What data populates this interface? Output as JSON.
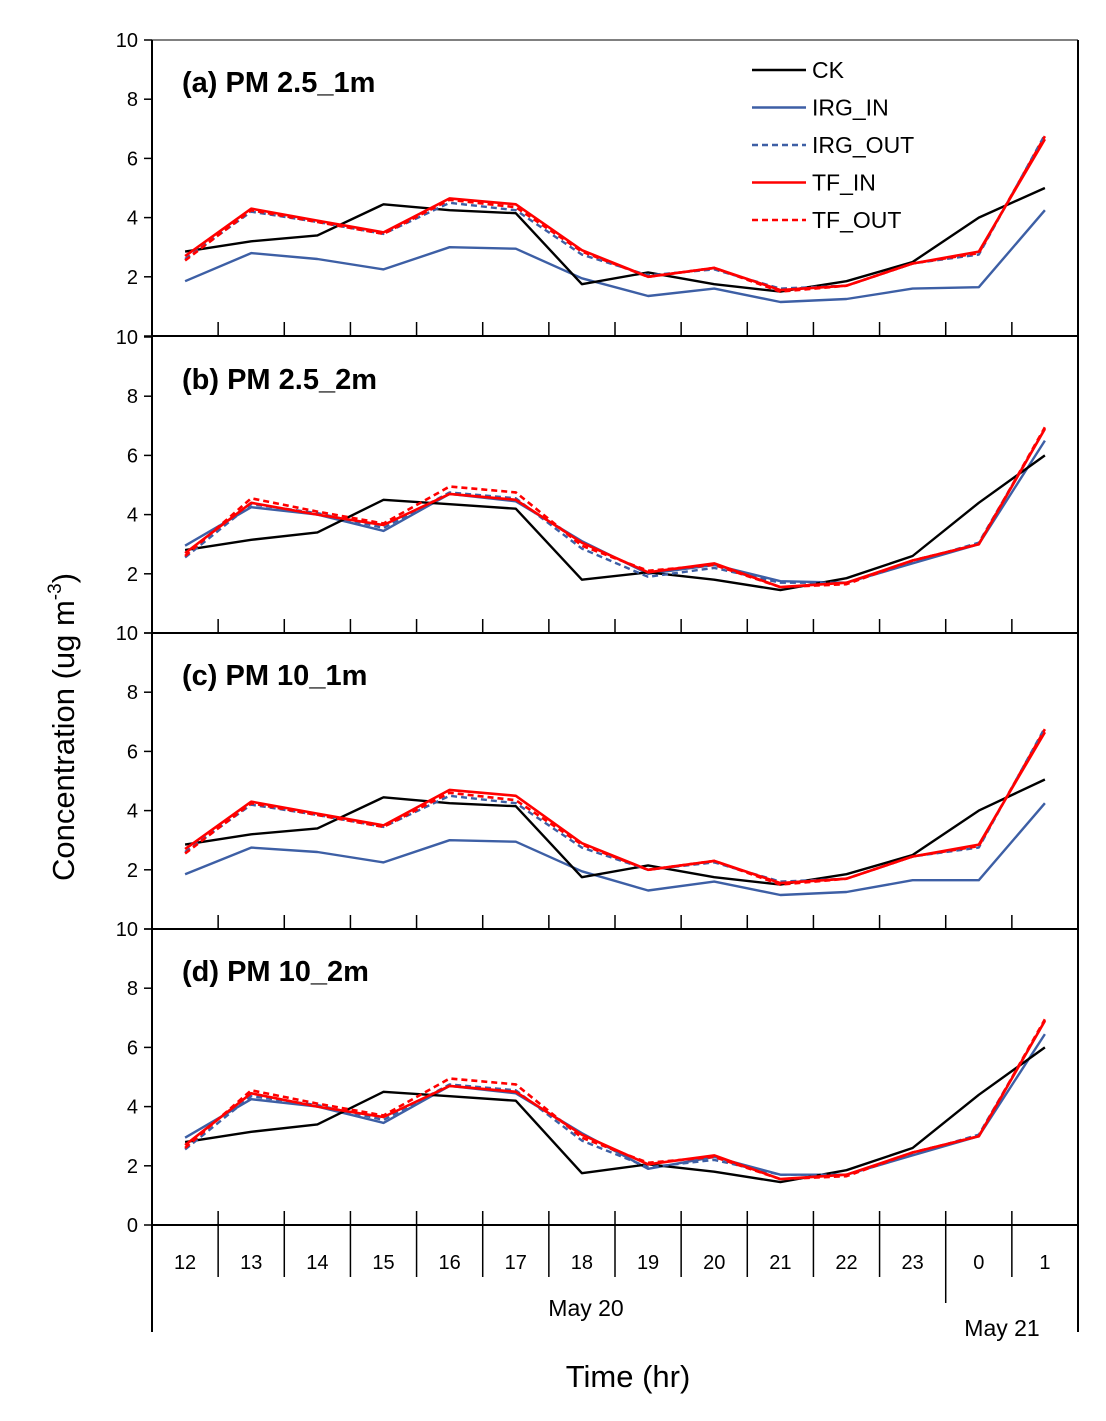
{
  "chart_data": {
    "type": "line",
    "ylabel": "Concentration (ug m",
    "ylabel_superscript": "-3",
    "ylabel_close": ")",
    "xlabel": "Time (hr)",
    "ylim": [
      0,
      10
    ],
    "yticks": [
      0,
      2,
      4,
      6,
      8,
      10
    ],
    "categories": [
      "12",
      "13",
      "14",
      "15",
      "16",
      "17",
      "18",
      "19",
      "20",
      "21",
      "22",
      "23",
      "0",
      "1"
    ],
    "date_labels": [
      "May 20",
      "May 21"
    ],
    "legend": [
      {
        "name": "CK",
        "color": "#000000",
        "dashed": false
      },
      {
        "name": "IRG_IN",
        "color": "#3d5fa5",
        "dashed": false
      },
      {
        "name": "IRG_OUT",
        "color": "#3d5fa5",
        "dashed": true
      },
      {
        "name": "TF_IN",
        "color": "#ff0000",
        "dashed": false
      },
      {
        "name": "TF_OUT",
        "color": "#ff0000",
        "dashed": true
      }
    ],
    "panels": [
      {
        "title": "(a) PM 2.5_1m",
        "series": [
          {
            "name": "CK",
            "values": [
              2.85,
              3.2,
              3.4,
              4.45,
              4.25,
              4.15,
              1.75,
              2.15,
              1.75,
              1.5,
              1.85,
              2.5,
              4.0,
              5.0
            ]
          },
          {
            "name": "IRG_IN",
            "values": [
              1.85,
              2.8,
              2.6,
              2.25,
              3.0,
              2.95,
              1.95,
              1.35,
              1.6,
              1.15,
              1.25,
              1.6,
              1.65,
              4.25
            ]
          },
          {
            "name": "IRG_OUT",
            "values": [
              2.6,
              4.2,
              3.85,
              3.45,
              4.5,
              4.25,
              2.75,
              2.05,
              2.25,
              1.6,
              1.7,
              2.45,
              2.75,
              6.8
            ]
          },
          {
            "name": "TF_IN",
            "values": [
              2.7,
              4.3,
              3.9,
              3.5,
              4.65,
              4.45,
              2.9,
              2.0,
              2.3,
              1.55,
              1.7,
              2.45,
              2.85,
              6.65
            ]
          },
          {
            "name": "TF_OUT",
            "values": [
              2.55,
              4.25,
              3.85,
              3.45,
              4.6,
              4.35,
              2.85,
              2.0,
              2.3,
              1.5,
              1.7,
              2.45,
              2.8,
              6.75
            ]
          }
        ]
      },
      {
        "title": "(b) PM 2.5_2m",
        "series": [
          {
            "name": "CK",
            "values": [
              2.8,
              3.15,
              3.4,
              4.5,
              4.35,
              4.2,
              1.8,
              2.05,
              1.8,
              1.45,
              1.85,
              2.6,
              4.4,
              6.0
            ]
          },
          {
            "name": "IRG_IN",
            "values": [
              2.95,
              4.25,
              4.0,
              3.45,
              4.7,
              4.45,
              3.1,
              2.0,
              2.3,
              1.75,
              1.7,
              2.35,
              3.0,
              6.5
            ]
          },
          {
            "name": "IRG_OUT",
            "values": [
              2.55,
              4.35,
              4.05,
              3.55,
              4.75,
              4.55,
              2.85,
              1.9,
              2.2,
              1.7,
              1.7,
              2.4,
              3.05,
              6.9
            ]
          },
          {
            "name": "TF_IN",
            "values": [
              2.7,
              4.4,
              4.0,
              3.65,
              4.7,
              4.5,
              3.05,
              2.05,
              2.35,
              1.55,
              1.7,
              2.45,
              3.0,
              6.9
            ]
          },
          {
            "name": "TF_OUT",
            "values": [
              2.6,
              4.55,
              4.1,
              3.7,
              4.95,
              4.75,
              2.95,
              2.1,
              2.3,
              1.55,
              1.65,
              2.45,
              3.0,
              6.95
            ]
          }
        ]
      },
      {
        "title": "(c) PM 10_1m",
        "series": [
          {
            "name": "CK",
            "values": [
              2.85,
              3.2,
              3.4,
              4.45,
              4.25,
              4.15,
              1.75,
              2.15,
              1.75,
              1.5,
              1.85,
              2.5,
              4.0,
              5.05
            ]
          },
          {
            "name": "IRG_IN",
            "values": [
              1.85,
              2.75,
              2.6,
              2.25,
              3.0,
              2.95,
              1.95,
              1.3,
              1.6,
              1.15,
              1.25,
              1.65,
              1.65,
              4.25
            ]
          },
          {
            "name": "IRG_OUT",
            "values": [
              2.6,
              4.2,
              3.85,
              3.45,
              4.5,
              4.25,
              2.75,
              2.0,
              2.25,
              1.6,
              1.7,
              2.45,
              2.75,
              6.8
            ]
          },
          {
            "name": "TF_IN",
            "values": [
              2.7,
              4.3,
              3.9,
              3.5,
              4.7,
              4.5,
              2.9,
              2.0,
              2.3,
              1.55,
              1.7,
              2.45,
              2.85,
              6.65
            ]
          },
          {
            "name": "TF_OUT",
            "values": [
              2.55,
              4.25,
              3.85,
              3.45,
              4.6,
              4.35,
              2.85,
              2.0,
              2.3,
              1.5,
              1.7,
              2.45,
              2.8,
              6.75
            ]
          }
        ]
      },
      {
        "title": "(d) PM 10_2m",
        "series": [
          {
            "name": "CK",
            "values": [
              2.8,
              3.15,
              3.4,
              4.5,
              4.35,
              4.2,
              1.75,
              2.05,
              1.8,
              1.45,
              1.85,
              2.6,
              4.4,
              6.0
            ]
          },
          {
            "name": "IRG_IN",
            "values": [
              2.95,
              4.25,
              4.0,
              3.45,
              4.7,
              4.45,
              3.1,
              1.9,
              2.3,
              1.7,
              1.7,
              2.35,
              3.0,
              6.45
            ]
          },
          {
            "name": "IRG_OUT",
            "values": [
              2.55,
              4.35,
              4.05,
              3.55,
              4.75,
              4.55,
              2.85,
              1.95,
              2.2,
              1.7,
              1.7,
              2.4,
              3.05,
              6.9
            ]
          },
          {
            "name": "TF_IN",
            "values": [
              2.7,
              4.45,
              4.0,
              3.65,
              4.7,
              4.5,
              3.05,
              2.05,
              2.35,
              1.55,
              1.7,
              2.45,
              3.0,
              6.9
            ]
          },
          {
            "name": "TF_OUT",
            "values": [
              2.6,
              4.55,
              4.1,
              3.7,
              4.95,
              4.75,
              2.95,
              2.1,
              2.3,
              1.55,
              1.65,
              2.45,
              3.0,
              6.95
            ]
          }
        ]
      }
    ]
  }
}
